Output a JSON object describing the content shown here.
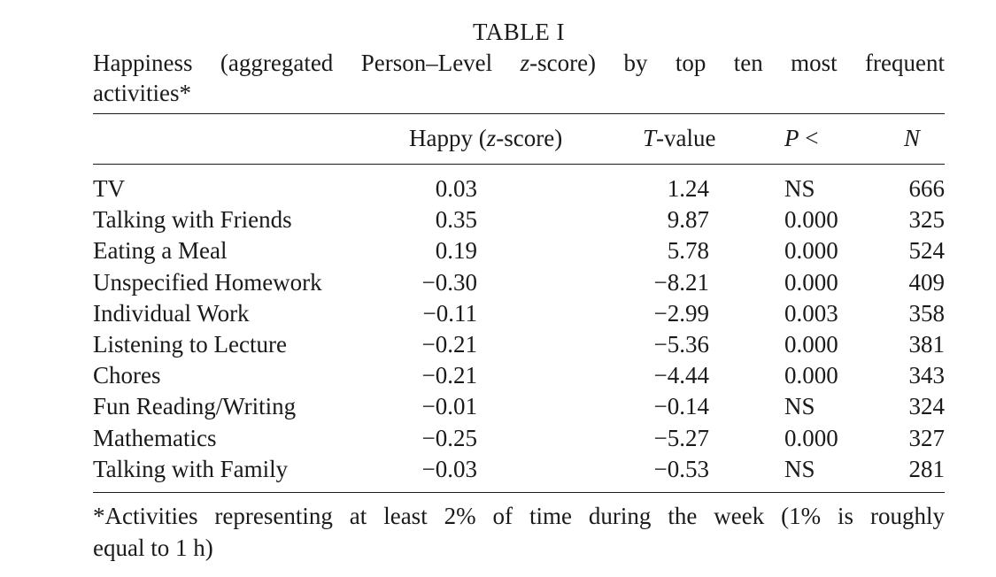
{
  "table": {
    "label": "TABLE I",
    "caption_line1": "Happiness (aggregated Person–Level z-score) by top ten most frequent",
    "caption_line2": "activities*",
    "headers": {
      "happy": "Happy (z-score)",
      "t_value": "T-value",
      "p": "P <",
      "n": "N"
    },
    "rows": [
      {
        "activity": "TV",
        "happy": "0.03",
        "t": "1.24",
        "p": "NS",
        "n": "666"
      },
      {
        "activity": "Talking with Friends",
        "happy": "0.35",
        "t": "9.87",
        "p": "0.000",
        "n": "325"
      },
      {
        "activity": "Eating a Meal",
        "happy": "0.19",
        "t": "5.78",
        "p": "0.000",
        "n": "524"
      },
      {
        "activity": "Unspecified Homework",
        "happy": "−0.30",
        "t": "−8.21",
        "p": "0.000",
        "n": "409"
      },
      {
        "activity": "Individual Work",
        "happy": "−0.11",
        "t": "−2.99",
        "p": "0.003",
        "n": "358"
      },
      {
        "activity": "Listening to Lecture",
        "happy": "−0.21",
        "t": "−5.36",
        "p": "0.000",
        "n": "381"
      },
      {
        "activity": "Chores",
        "happy": "−0.21",
        "t": "−4.44",
        "p": "0.000",
        "n": "343"
      },
      {
        "activity": "Fun Reading/Writing",
        "happy": "−0.01",
        "t": "−0.14",
        "p": "NS",
        "n": "324"
      },
      {
        "activity": "Mathematics",
        "happy": "−0.25",
        "t": "−5.27",
        "p": "0.000",
        "n": "327"
      },
      {
        "activity": "Talking with Family",
        "happy": "−0.03",
        "t": "−0.53",
        "p": "NS",
        "n": "281"
      }
    ],
    "footnote_line1": "*Activities representing at least 2% of time during the week (1% is roughly",
    "footnote_line2": "equal to 1 h)"
  }
}
